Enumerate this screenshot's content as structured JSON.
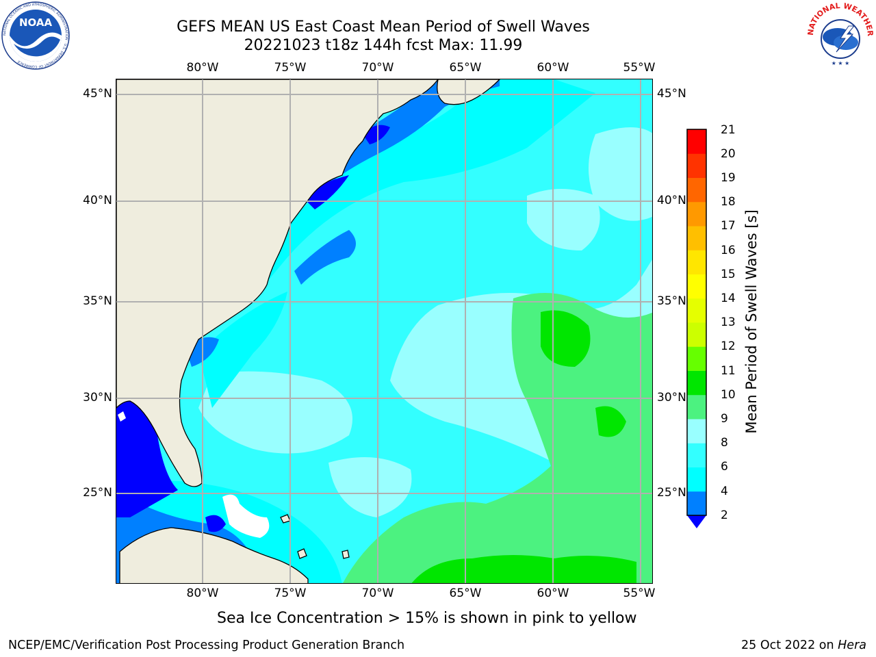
{
  "header": {
    "title_line1": "GEFS MEAN US East Coast Mean Period of Swell Waves",
    "title_line2": "20221023 t18z 144h fcst   Max: 11.99"
  },
  "logos": {
    "noaa": {
      "text": "NOAA",
      "ring_text": "NATIONAL OCEANIC AND ATMOSPHERIC ADMINISTRATION · U.S. DEPARTMENT OF COMMERCE"
    },
    "nws": {
      "ring_text": "NATIONAL WEATHER SERVICE"
    }
  },
  "map": {
    "lon_ticks": [
      "80°W",
      "75°W",
      "70°W",
      "65°W",
      "60°W",
      "55°W"
    ],
    "lat_ticks": [
      "45°N",
      "40°N",
      "35°N",
      "30°N",
      "25°N"
    ],
    "extent": {
      "lon_min": -85,
      "lon_max": -54.2,
      "lat_min": 20.2,
      "lat_max": 45.8
    },
    "colors": {
      "land": "#efedde",
      "gridline": "#b0b0b0",
      "coastline": "#000000",
      "no_data": "#ffffff"
    }
  },
  "colorbar": {
    "title": "Mean Period of Swell Waves [s]",
    "labels": [
      "21",
      "20",
      "19",
      "18",
      "17",
      "16",
      "15",
      "14",
      "13",
      "12",
      "11",
      "10",
      "9",
      "8",
      "6",
      "4",
      "2"
    ],
    "bands": [
      {
        "from": 2,
        "to": 4,
        "color": "#0080ff"
      },
      {
        "from": 4,
        "to": 6,
        "color": "#00ffff"
      },
      {
        "from": 6,
        "to": 8,
        "color": "#33ffff"
      },
      {
        "from": 8,
        "to": 9,
        "color": "#99ffff"
      },
      {
        "from": 9,
        "to": 10,
        "color": "#4cf280"
      },
      {
        "from": 10,
        "to": 11,
        "color": "#00e600"
      },
      {
        "from": 11,
        "to": 12,
        "color": "#66ff00"
      },
      {
        "from": 12,
        "to": 13,
        "color": "#ccff00"
      },
      {
        "from": 13,
        "to": 14,
        "color": "#e5ff00"
      },
      {
        "from": 14,
        "to": 15,
        "color": "#ffff00"
      },
      {
        "from": 15,
        "to": 16,
        "color": "#ffe600"
      },
      {
        "from": 16,
        "to": 17,
        "color": "#ffbf00"
      },
      {
        "from": 17,
        "to": 18,
        "color": "#ff9900"
      },
      {
        "from": 18,
        "to": 19,
        "color": "#ff6600"
      },
      {
        "from": 19,
        "to": 20,
        "color": "#ff3300"
      },
      {
        "from": 20,
        "to": 21,
        "color": "#ff0000"
      }
    ],
    "extend_below_color": "#0000ff"
  },
  "notes": {
    "ice": "Sea Ice Concentration > 15% is shown in pink to yellow"
  },
  "footer": {
    "left": "NCEP/EMC/Verification Post Processing Product Generation Branch",
    "right_date": "25 Oct 2022 on ",
    "right_host": "Hera"
  }
}
